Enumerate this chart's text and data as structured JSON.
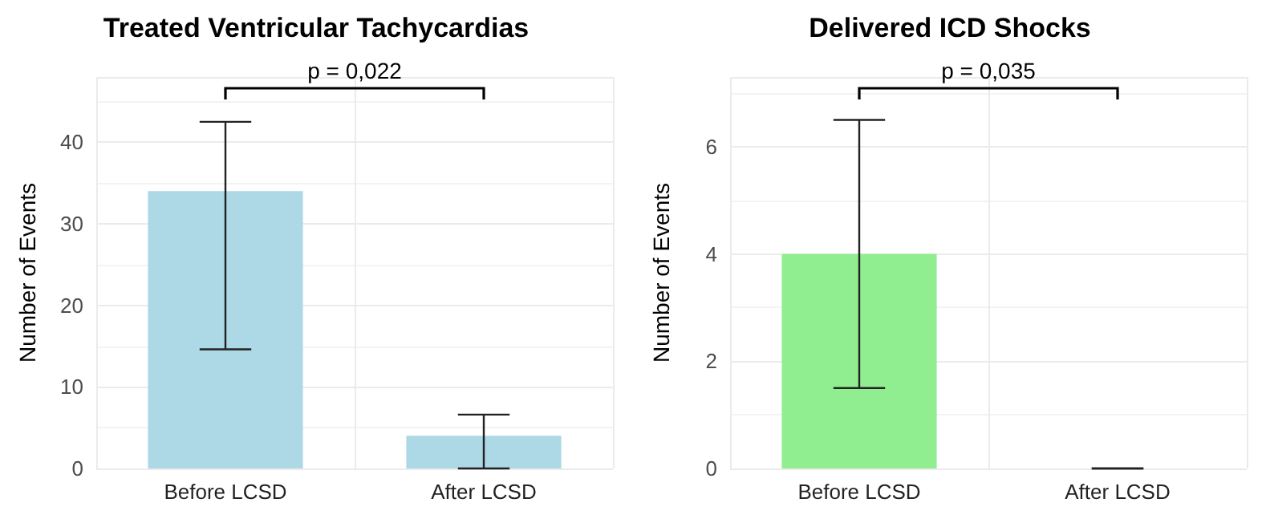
{
  "chart_data": [
    {
      "type": "bar",
      "title": "Treated Ventricular Tachycardias",
      "ylabel": "Number of Events",
      "categories": [
        "Before LCSD",
        "After LCSD"
      ],
      "values": [
        34,
        4
      ],
      "color": "#add8e6",
      "errors": [
        [
          14.6,
          42.5
        ],
        [
          0,
          6.6
        ]
      ],
      "ylim": [
        0,
        48
      ],
      "yticks": [
        0,
        10,
        20,
        30,
        40
      ],
      "grid": true,
      "annotations": [
        "p = 0,022"
      ]
    },
    {
      "type": "bar",
      "title": "Delivered ICD Shocks",
      "ylabel": "Number of Events",
      "categories": [
        "Before LCSD",
        "After LCSD"
      ],
      "values": [
        4,
        0
      ],
      "color": "#90ee90",
      "errors": [
        [
          1.5,
          6.5
        ],
        [
          0,
          0
        ]
      ],
      "ylim": [
        0,
        7.3
      ],
      "yticks": [
        0,
        2,
        4,
        6
      ],
      "grid": true,
      "annotations": [
        "p = 0,035"
      ]
    }
  ]
}
